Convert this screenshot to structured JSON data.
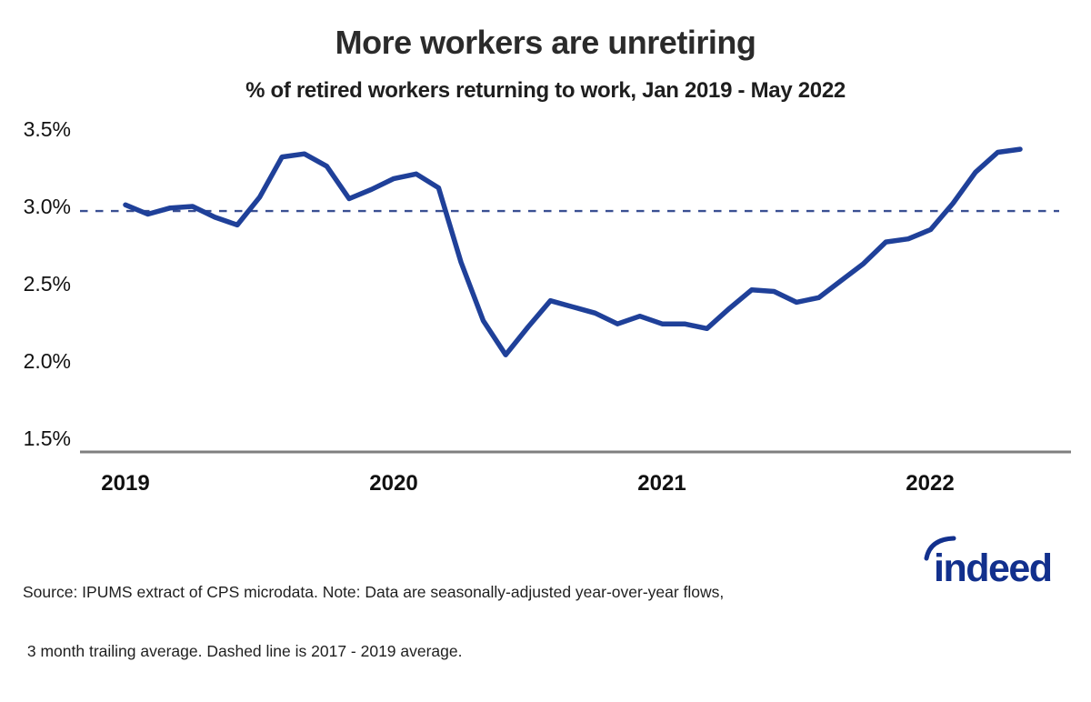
{
  "header": {
    "title": "More workers are unretiring",
    "subtitle": "% of retired workers returning to work, Jan 2019 - May 2022"
  },
  "chart_data": {
    "type": "line",
    "title": "More workers are unretiring",
    "subtitle": "% of retired workers returning to work, Jan 2019 - May 2022",
    "x": [
      "Jan 2019",
      "Feb 2019",
      "Mar 2019",
      "Apr 2019",
      "May 2019",
      "Jun 2019",
      "Jul 2019",
      "Aug 2019",
      "Sep 2019",
      "Oct 2019",
      "Nov 2019",
      "Dec 2019",
      "Jan 2020",
      "Feb 2020",
      "Mar 2020",
      "Apr 2020",
      "May 2020",
      "Jun 2020",
      "Jul 2020",
      "Aug 2020",
      "Sep 2020",
      "Oct 2020",
      "Nov 2020",
      "Dec 2020",
      "Jan 2021",
      "Feb 2021",
      "Mar 2021",
      "Apr 2021",
      "May 2021",
      "Jun 2021",
      "Jul 2021",
      "Aug 2021",
      "Sep 2021",
      "Oct 2021",
      "Nov 2021",
      "Dec 2021",
      "Jan 2022",
      "Feb 2022",
      "Mar 2022",
      "Apr 2022",
      "May 2022"
    ],
    "series": [
      {
        "name": "% of retired workers returning to work",
        "values": [
          3.01,
          2.95,
          2.99,
          3.0,
          2.93,
          2.88,
          3.06,
          3.32,
          3.34,
          3.26,
          3.05,
          3.11,
          3.18,
          3.21,
          3.12,
          2.64,
          2.26,
          2.04,
          2.22,
          2.39,
          2.35,
          2.31,
          2.24,
          2.29,
          2.24,
          2.24,
          2.21,
          2.34,
          2.46,
          2.45,
          2.38,
          2.41,
          2.52,
          2.63,
          2.77,
          2.79,
          2.85,
          3.02,
          3.22,
          3.35,
          3.37
        ]
      }
    ],
    "reference_line": {
      "value": 2.97,
      "style": "dashed",
      "label": "2017 - 2019 average"
    },
    "ylim": [
      1.5,
      3.5
    ],
    "yticks": [
      "3.5%",
      "3.0%",
      "2.5%",
      "2.0%",
      "1.5%"
    ],
    "xticks": [
      "2019",
      "2020",
      "2021",
      "2022"
    ],
    "grid": "off",
    "legend": "none",
    "colors": {
      "line": "#1f4099",
      "dashed": "#3a4f92",
      "axis": "#7f7f7f",
      "logo": "#12308d"
    }
  },
  "footer": {
    "source_line1": "Source: IPUMS extract of CPS microdata. Note: Data are seasonally-adjusted year-over-year flows,",
    "source_line2": " 3 month trailing average. Dashed line is 2017 - 2019 average.",
    "logo_text": "indeed"
  }
}
